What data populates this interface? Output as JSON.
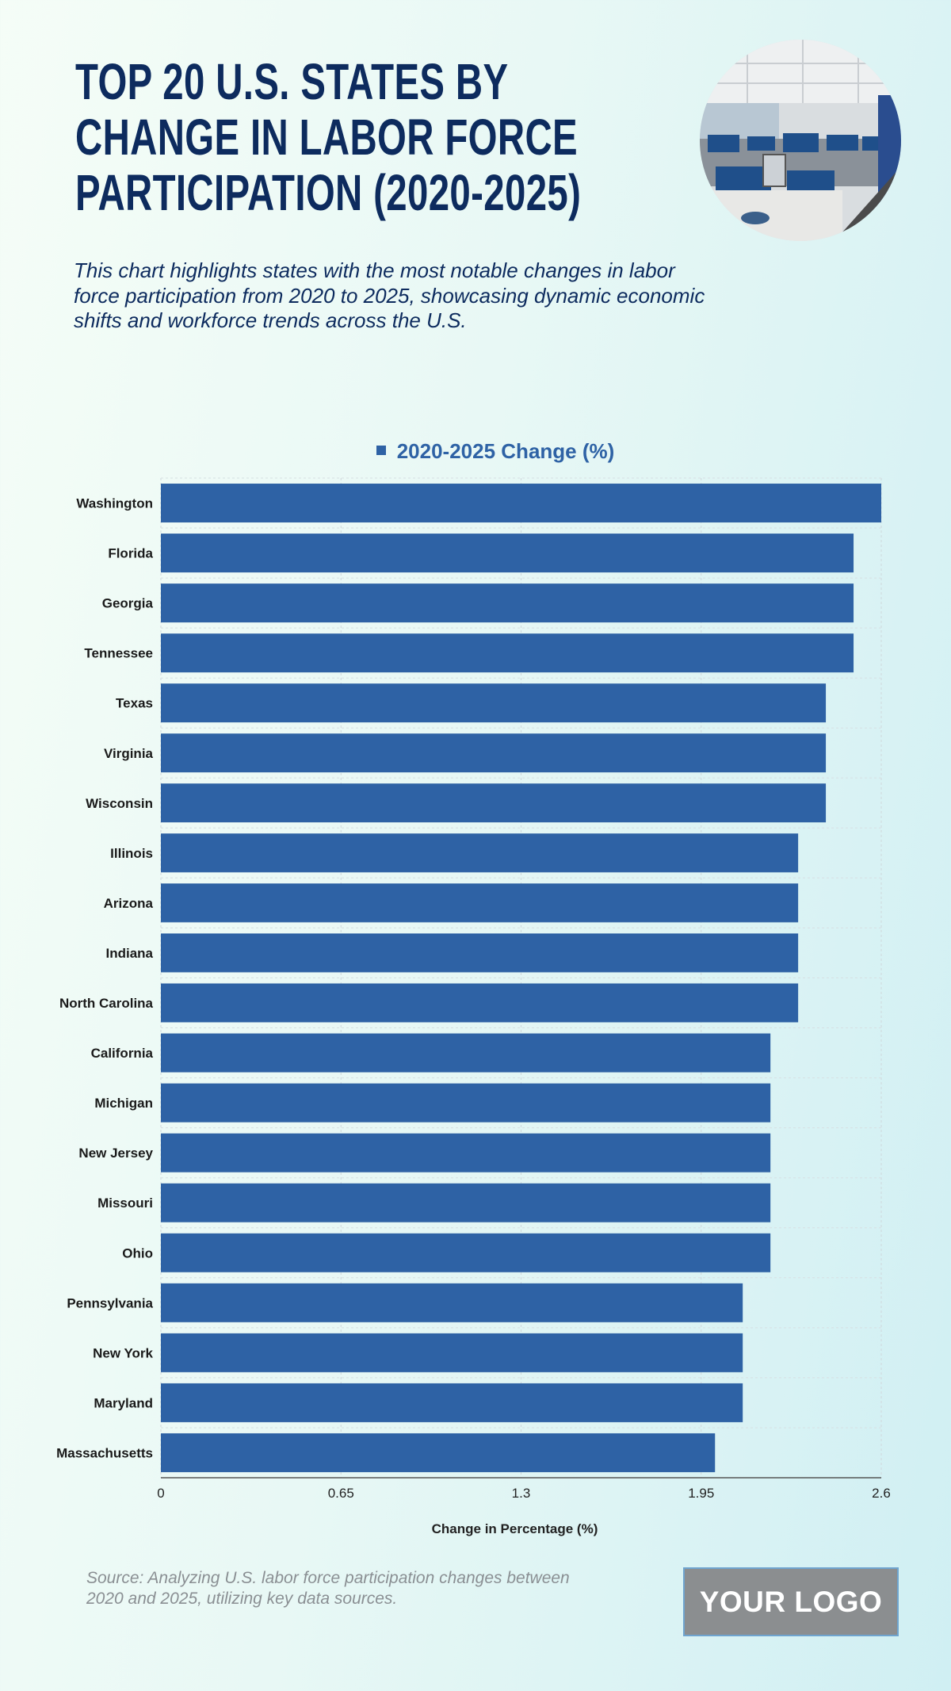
{
  "title_lines": [
    "TOP 20 U.S. STATES BY",
    "CHANGE IN LABOR FORCE",
    "PARTICIPATION (2020-2025)"
  ],
  "subtitle": "This chart highlights states with the most notable changes in labor force participation from 2020 to 2025, showcasing dynamic economic shifts and workforce trends across the U.S.",
  "source": "Source: Analyzing U.S. labor force participation changes between 2020 and 2025, utilizing key data sources.",
  "logo": "YOUR LOGO",
  "colors": {
    "bar": "#2e62a5",
    "title": "#0d2b5e"
  },
  "chart_data": {
    "type": "bar",
    "orientation": "horizontal",
    "categories": [
      "Washington",
      "Florida",
      "Georgia",
      "Tennessee",
      "Texas",
      "Virginia",
      "Wisconsin",
      "Illinois",
      "Arizona",
      "Indiana",
      "North Carolina",
      "California",
      "Michigan",
      "New Jersey",
      "Missouri",
      "Ohio",
      "Pennsylvania",
      "New York",
      "Maryland",
      "Massachusetts"
    ],
    "series": [
      {
        "name": "2020-2025 Change (%)",
        "values": [
          2.6,
          2.5,
          2.5,
          2.5,
          2.4,
          2.4,
          2.4,
          2.3,
          2.3,
          2.3,
          2.3,
          2.2,
          2.2,
          2.2,
          2.2,
          2.2,
          2.1,
          2.1,
          2.1,
          2.0
        ]
      }
    ],
    "xlabel": "Change in Percentage (%)",
    "ylabel": "",
    "xlim": [
      0,
      2.6
    ],
    "xticks": [
      "0",
      "0.65",
      "1.3",
      "1.95",
      "2.6"
    ],
    "legend": "top-center",
    "grid": true
  }
}
